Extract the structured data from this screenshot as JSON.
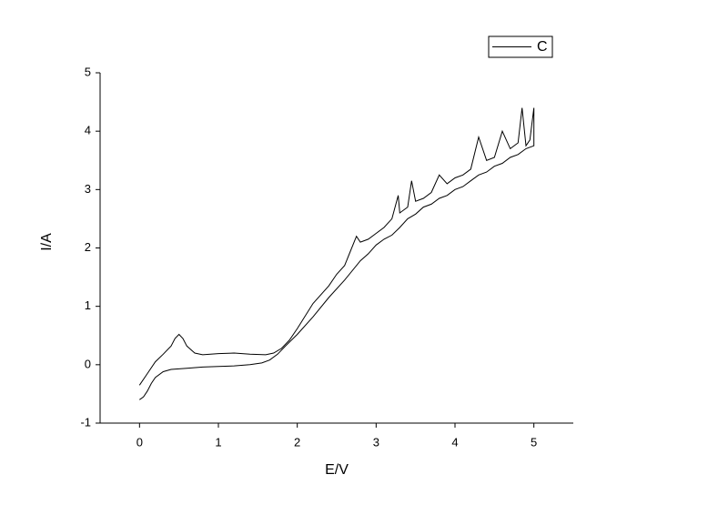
{
  "chart_data": {
    "type": "line",
    "x_label": "E/V",
    "y_label": "I/A",
    "xlim": [
      -0.5,
      5.5
    ],
    "xticks": [
      0,
      1,
      2,
      3,
      4,
      5
    ],
    "ylim": [
      -1,
      5
    ],
    "yticks": [
      -1,
      0,
      1,
      2,
      3,
      4,
      5
    ],
    "legend": "top-right",
    "series": [
      {
        "name": "C",
        "color": "#000000",
        "x": [
          0,
          0.05,
          0.1,
          0.15,
          0.2,
          0.3,
          0.4,
          0.6,
          0.8,
          1.0,
          1.2,
          1.4,
          1.55,
          1.65,
          1.75,
          1.85,
          2.0,
          2.2,
          2.4,
          2.6,
          2.8,
          2.9,
          3.0,
          3.1,
          3.2,
          3.3,
          3.4,
          3.5,
          3.6,
          3.7,
          3.8,
          3.9,
          4.0,
          4.1,
          4.2,
          4.3,
          4.4,
          4.5,
          4.6,
          4.7,
          4.8,
          4.9,
          5.0,
          5.0,
          4.95,
          4.9,
          4.85,
          4.8,
          4.7,
          4.6,
          4.5,
          4.4,
          4.3,
          4.2,
          4.1,
          4.0,
          3.9,
          3.8,
          3.7,
          3.6,
          3.5,
          3.45,
          3.4,
          3.3,
          3.28,
          3.2,
          3.1,
          3.0,
          2.9,
          2.8,
          2.75,
          2.6,
          2.5,
          2.4,
          2.2,
          2.0,
          1.9,
          1.8,
          1.7,
          1.6,
          1.4,
          1.2,
          1.0,
          0.8,
          0.7,
          0.6,
          0.55,
          0.5,
          0.45,
          0.4,
          0.3,
          0.2,
          0.1,
          0
        ],
        "values": [
          -0.6,
          -0.55,
          -0.45,
          -0.32,
          -0.22,
          -0.12,
          -0.08,
          -0.06,
          -0.04,
          -0.03,
          -0.02,
          0.0,
          0.03,
          0.08,
          0.18,
          0.32,
          0.52,
          0.82,
          1.15,
          1.45,
          1.78,
          1.9,
          2.05,
          2.15,
          2.22,
          2.35,
          2.5,
          2.58,
          2.7,
          2.75,
          2.85,
          2.9,
          3.0,
          3.05,
          3.15,
          3.25,
          3.3,
          3.4,
          3.45,
          3.55,
          3.6,
          3.7,
          3.75,
          4.4,
          3.85,
          3.75,
          4.4,
          3.8,
          3.7,
          4.0,
          3.55,
          3.5,
          3.9,
          3.35,
          3.25,
          3.2,
          3.1,
          3.25,
          2.95,
          2.85,
          2.8,
          3.15,
          2.7,
          2.6,
          2.9,
          2.5,
          2.35,
          2.25,
          2.15,
          2.1,
          2.2,
          1.7,
          1.55,
          1.35,
          1.05,
          0.62,
          0.42,
          0.28,
          0.2,
          0.17,
          0.18,
          0.2,
          0.19,
          0.17,
          0.2,
          0.32,
          0.45,
          0.52,
          0.45,
          0.32,
          0.18,
          0.05,
          -0.15,
          -0.35
        ]
      }
    ]
  }
}
